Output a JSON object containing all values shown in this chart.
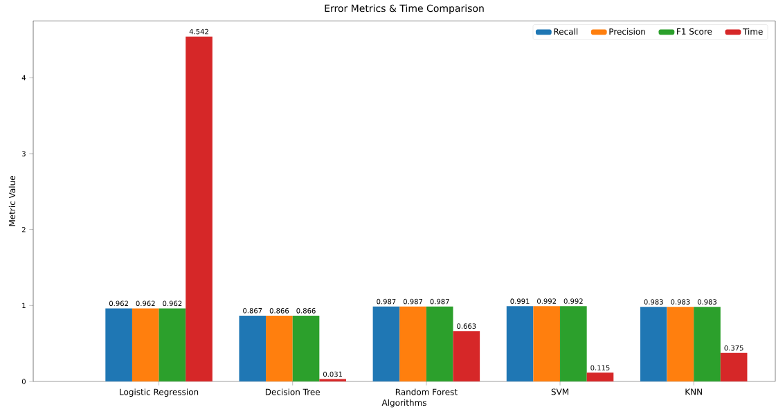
{
  "chart_data": {
    "type": "bar",
    "title": "Error Metrics & Time Comparison",
    "xlabel": "Algorithms",
    "ylabel": "Metric Value",
    "categories": [
      "Logistic Regression",
      "Decision Tree",
      "Random Forest",
      "SVM",
      "KNN"
    ],
    "series": [
      {
        "name": "Recall",
        "color": "#1f77b4",
        "values": [
          0.962,
          0.867,
          0.987,
          0.991,
          0.983
        ]
      },
      {
        "name": "Precision",
        "color": "#ff7f0e",
        "values": [
          0.962,
          0.866,
          0.987,
          0.992,
          0.983
        ]
      },
      {
        "name": "F1 Score",
        "color": "#2ca02c",
        "values": [
          0.962,
          0.866,
          0.987,
          0.992,
          0.983
        ]
      },
      {
        "name": "Time",
        "color": "#d62728",
        "values": [
          4.542,
          0.031,
          0.663,
          0.115,
          0.375
        ]
      }
    ],
    "ylim": [
      0,
      4.75
    ],
    "yticks": [
      0,
      1,
      2,
      3,
      4
    ],
    "data_labels": true,
    "legend": "top right",
    "grid": false
  }
}
